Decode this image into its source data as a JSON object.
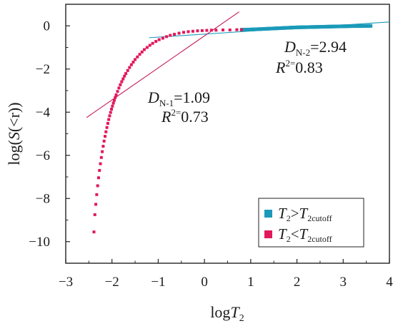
{
  "chart_data": {
    "type": "scatter",
    "xlabel": "logT2",
    "ylabel": "log(S(<r))",
    "xlim": [
      -3,
      4
    ],
    "ylim": [
      -11,
      1
    ],
    "x_ticks": [
      -3,
      -2,
      -1,
      0,
      1,
      2,
      3,
      4
    ],
    "y_ticks": [
      0,
      -2,
      -4,
      -6,
      -8,
      -10
    ],
    "x_tick_labels": [
      "−3",
      "−2",
      "−1",
      "0",
      "1",
      "2",
      "3",
      "4"
    ],
    "y_tick_labels": [
      "0",
      "−2",
      "−4",
      "−6",
      "−8",
      "−10"
    ],
    "grid": false,
    "legend_position": "bottom-right",
    "series": [
      {
        "name": "T2 > T2cutoff",
        "color": "#1a9ab8",
        "marker": "square",
        "x": [
          0.8,
          1.0,
          1.2,
          1.4,
          1.6,
          1.8,
          2.0,
          2.2,
          2.4,
          2.6,
          2.8,
          3.0,
          3.2,
          3.4,
          3.6
        ],
        "y": [
          -0.18,
          -0.17,
          -0.15,
          -0.13,
          -0.11,
          -0.09,
          -0.07,
          -0.06,
          -0.05,
          -0.04,
          -0.03,
          -0.02,
          -0.01,
          -0.01,
          0.0
        ]
      },
      {
        "name": "T2 < T2cutoff",
        "color": "#e2185b",
        "marker": "square",
        "x": [
          -2.39,
          -2.37,
          -2.35,
          -2.33,
          -2.31,
          -2.29,
          -2.27,
          -2.25,
          -2.23,
          -2.21,
          -2.19,
          -2.17,
          -2.15,
          -2.13,
          -2.11,
          -2.09,
          -2.07,
          -2.05,
          -2.03,
          -2.01,
          -1.99,
          -1.97,
          -1.95,
          -1.93,
          -1.91,
          -1.88,
          -1.85,
          -1.82,
          -1.79,
          -1.76,
          -1.73,
          -1.7,
          -1.66,
          -1.62,
          -1.58,
          -1.54,
          -1.5,
          -1.45,
          -1.4,
          -1.35,
          -1.3,
          -1.24,
          -1.18,
          -1.12,
          -1.05,
          -0.98,
          -0.9,
          -0.82,
          -0.74,
          -0.65,
          -0.55,
          -0.45,
          -0.35,
          -0.25,
          -0.15,
          -0.05,
          0.05,
          0.15,
          0.25,
          0.4,
          0.55,
          0.7,
          0.8
        ],
        "y": [
          -9.55,
          -8.75,
          -8.27,
          -7.82,
          -7.41,
          -7.04,
          -6.7,
          -6.39,
          -6.1,
          -5.83,
          -5.58,
          -5.34,
          -5.12,
          -4.91,
          -4.71,
          -4.52,
          -4.34,
          -4.17,
          -4.01,
          -3.86,
          -3.72,
          -3.58,
          -3.45,
          -3.32,
          -3.2,
          -3.04,
          -2.88,
          -2.73,
          -2.59,
          -2.46,
          -2.33,
          -2.21,
          -2.07,
          -1.93,
          -1.8,
          -1.68,
          -1.56,
          -1.44,
          -1.32,
          -1.21,
          -1.1,
          -1.0,
          -0.9,
          -0.81,
          -0.72,
          -0.64,
          -0.57,
          -0.5,
          -0.44,
          -0.39,
          -0.34,
          -0.3,
          -0.27,
          -0.25,
          -0.23,
          -0.22,
          -0.21,
          -0.2,
          -0.2,
          -0.19,
          -0.19,
          -0.18,
          -0.18
        ]
      }
    ],
    "fit_lines": [
      {
        "name": "fit-line-2",
        "color": "#1a9ab8",
        "x": [
          -1.2,
          4.0
        ],
        "y": [
          -0.55,
          0.18
        ]
      },
      {
        "name": "fit-line-1",
        "color": "#c2185b",
        "x": [
          -2.55,
          0.75
        ],
        "y": [
          -4.25,
          0.65
        ]
      }
    ],
    "annotations": [
      {
        "name": "annotation-n2",
        "symbol": "D",
        "subscript": "N-2",
        "value_line1": "=2.94",
        "r_symbol": "R",
        "r_sup": "2=",
        "r_value": "0.83"
      },
      {
        "name": "annotation-n1",
        "symbol": "D",
        "subscript": "N-1",
        "value_line1": "=1.09",
        "r_symbol": "R",
        "r_sup": "2=",
        "r_value": "0.73"
      }
    ],
    "legend": {
      "items": [
        {
          "t_symbol": "T",
          "t_sub": "2",
          "op": ">",
          "t2_symbol": "T",
          "t2_sub": "2cutoff",
          "color": "#1a9ab8"
        },
        {
          "t_symbol": "T",
          "t_sub": "2",
          "op": "<",
          "t2_symbol": "T",
          "t2_sub": "2cutoff",
          "color": "#e2185b"
        }
      ]
    },
    "axis_title_parts": {
      "y": {
        "pre": "log(",
        "italic": "S",
        "post": "(<r))"
      },
      "x": {
        "pre": "log",
        "italic": "T",
        "sub": "2"
      }
    }
  }
}
